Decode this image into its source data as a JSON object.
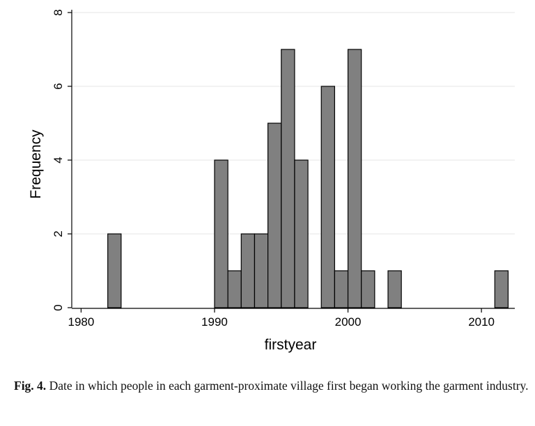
{
  "chart_data": {
    "type": "bar",
    "xlabel": "firstyear",
    "ylabel": "Frequency",
    "xlim": [
      1979.3,
      2012.5
    ],
    "ylim": [
      0,
      8
    ],
    "xticks": [
      1980,
      1990,
      2000,
      2010
    ],
    "yticks": [
      0,
      2,
      4,
      6,
      8
    ],
    "grid": true,
    "bin_width": 1,
    "bars": [
      {
        "start": 1982,
        "value": 2
      },
      {
        "start": 1990,
        "value": 4
      },
      {
        "start": 1991,
        "value": 1
      },
      {
        "start": 1992,
        "value": 2
      },
      {
        "start": 1993,
        "value": 2
      },
      {
        "start": 1994,
        "value": 5
      },
      {
        "start": 1995,
        "value": 7
      },
      {
        "start": 1996,
        "value": 4
      },
      {
        "start": 1998,
        "value": 6
      },
      {
        "start": 1999,
        "value": 1
      },
      {
        "start": 2000,
        "value": 7
      },
      {
        "start": 2001,
        "value": 1
      },
      {
        "start": 2003,
        "value": 1
      },
      {
        "start": 2011,
        "value": 1
      }
    ],
    "bar_color": "#808080",
    "bar_edge_color": "#000000"
  },
  "caption": {
    "label": "Fig. 4.",
    "text": " Date in which people in each garment-proximate village first began working the garment industry."
  }
}
